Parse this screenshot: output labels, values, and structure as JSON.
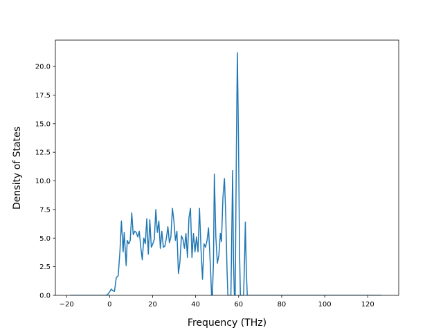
{
  "chart_data": {
    "type": "line",
    "title": "",
    "xlabel": "Frequency (THz)",
    "ylabel": "Density of States",
    "xlim": [
      -25.2,
      134.4
    ],
    "ylim": [
      0,
      22.3
    ],
    "xticks": [
      -20,
      0,
      20,
      40,
      60,
      80,
      100,
      120
    ],
    "xtick_labels": [
      "−20",
      "0",
      "20",
      "40",
      "60",
      "80",
      "100",
      "120"
    ],
    "yticks": [
      0,
      2.5,
      5,
      7.5,
      10,
      12.5,
      15,
      17.5,
      20
    ],
    "ytick_labels": [
      "0.0",
      "2.5",
      "5.0",
      "7.5",
      "10.0",
      "12.5",
      "15.0",
      "17.5",
      "20.0"
    ],
    "grid": false,
    "legend": "none",
    "series": [
      {
        "color": "#1f77b4",
        "points": [
          [
            -18.3,
            0
          ],
          [
            -2.0,
            0
          ],
          [
            -1.0,
            0.05
          ],
          [
            0.0,
            0.3
          ],
          [
            0.8,
            0.55
          ],
          [
            1.5,
            0.4
          ],
          [
            2.3,
            0.35
          ],
          [
            3.1,
            1.55
          ],
          [
            4.0,
            1.7
          ],
          [
            4.8,
            3.8
          ],
          [
            5.5,
            6.5
          ],
          [
            6.3,
            3.8
          ],
          [
            6.8,
            5.5
          ],
          [
            7.7,
            2.6
          ],
          [
            8.2,
            4.8
          ],
          [
            8.9,
            4.5
          ],
          [
            9.6,
            4.8
          ],
          [
            10.3,
            7.2
          ],
          [
            11.0,
            5.3
          ],
          [
            11.7,
            5.6
          ],
          [
            12.4,
            5.5
          ],
          [
            13.1,
            5.1
          ],
          [
            13.8,
            5.6
          ],
          [
            14.5,
            4.2
          ],
          [
            15.2,
            3.1
          ],
          [
            15.9,
            5.0
          ],
          [
            16.6,
            4.5
          ],
          [
            17.3,
            6.7
          ],
          [
            18.0,
            3.6
          ],
          [
            18.7,
            6.6
          ],
          [
            19.4,
            4.2
          ],
          [
            20.1,
            4.5
          ],
          [
            20.8,
            4.9
          ],
          [
            21.5,
            7.5
          ],
          [
            22.2,
            5.5
          ],
          [
            22.9,
            6.5
          ],
          [
            23.6,
            4.1
          ],
          [
            24.3,
            5.6
          ],
          [
            25.0,
            4.2
          ],
          [
            25.7,
            4.3
          ],
          [
            26.4,
            5.0
          ],
          [
            27.1,
            6.0
          ],
          [
            27.8,
            4.6
          ],
          [
            28.5,
            5.1
          ],
          [
            29.2,
            7.6
          ],
          [
            29.9,
            6.5
          ],
          [
            30.6,
            4.8
          ],
          [
            31.3,
            5.6
          ],
          [
            32.0,
            1.9
          ],
          [
            32.7,
            2.9
          ],
          [
            33.4,
            5.2
          ],
          [
            34.1,
            4.9
          ],
          [
            34.8,
            4.1
          ],
          [
            35.5,
            5.4
          ],
          [
            36.2,
            3.3
          ],
          [
            36.9,
            6.8
          ],
          [
            37.6,
            7.6
          ],
          [
            38.3,
            3.3
          ],
          [
            39.0,
            5.4
          ],
          [
            39.7,
            3.8
          ],
          [
            40.4,
            5.1
          ],
          [
            41.1,
            3.8
          ],
          [
            41.8,
            7.6
          ],
          [
            42.5,
            4.0
          ],
          [
            43.2,
            1.4
          ],
          [
            43.9,
            4.5
          ],
          [
            44.6,
            4.2
          ],
          [
            45.3,
            4.8
          ],
          [
            46.0,
            5.9
          ],
          [
            47.0,
            2.0
          ],
          [
            47.4,
            0
          ],
          [
            47.8,
            0
          ],
          [
            48.3,
            3.0
          ],
          [
            48.7,
            10.6
          ],
          [
            49.4,
            5.1
          ],
          [
            50.1,
            2.8
          ],
          [
            50.8,
            3.5
          ],
          [
            51.5,
            5.4
          ],
          [
            52.0,
            4.7
          ],
          [
            52.7,
            8.6
          ],
          [
            53.4,
            10.2
          ],
          [
            54.0,
            7.0
          ],
          [
            54.6,
            2.2
          ],
          [
            55.0,
            0
          ],
          [
            56.4,
            0
          ],
          [
            57.2,
            10.9
          ],
          [
            57.6,
            3.0
          ],
          [
            58.0,
            0
          ],
          [
            58.4,
            0
          ],
          [
            59.0,
            14.0
          ],
          [
            59.4,
            21.2
          ],
          [
            59.9,
            14.0
          ],
          [
            60.4,
            4.0
          ],
          [
            60.8,
            0
          ],
          [
            62.3,
            0
          ],
          [
            62.8,
            3.5
          ],
          [
            63.1,
            6.4
          ],
          [
            63.6,
            2.0
          ],
          [
            64.0,
            0
          ],
          [
            126.4,
            0
          ]
        ]
      }
    ]
  }
}
